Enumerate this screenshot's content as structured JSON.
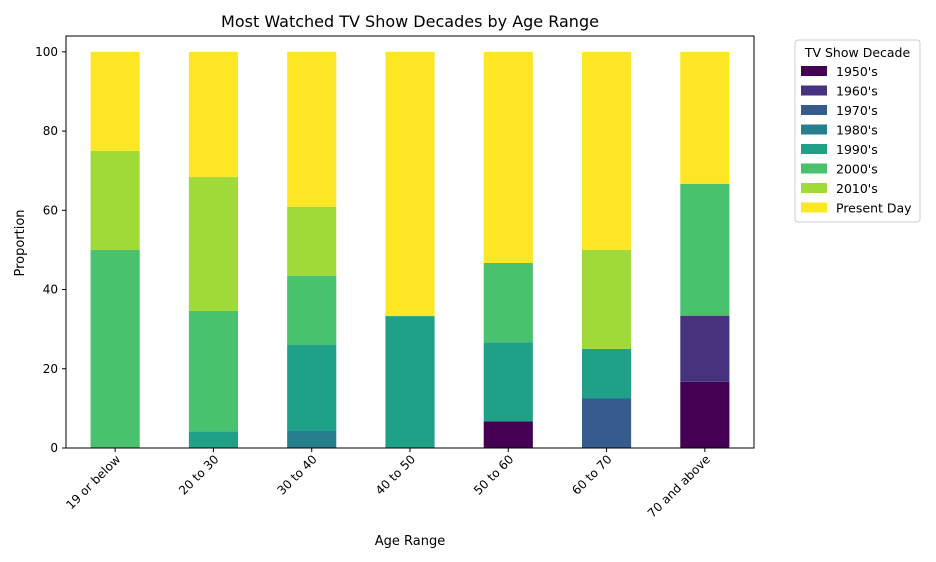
{
  "chart_data": {
    "type": "bar",
    "stacked": true,
    "title": "Most Watched TV Show Decades by Age Range",
    "xlabel": "Age Range",
    "ylabel": "Proportion",
    "ylim": [
      0,
      104
    ],
    "yticks": [
      0,
      20,
      40,
      60,
      80,
      100
    ],
    "categories": [
      "19 or below",
      "20 to 30",
      "30 to 40",
      "40 to 50",
      "50 to 60",
      "60 to 70",
      "70 and above"
    ],
    "legend_title": "TV Show Decade",
    "legend_position": "outside upper right",
    "grid": false,
    "series": [
      {
        "name": "1950's",
        "color": "#440154",
        "values": [
          0,
          0,
          0,
          0,
          6.7,
          0,
          16.7
        ]
      },
      {
        "name": "1960's",
        "color": "#46327e",
        "values": [
          0,
          0,
          0,
          0,
          0,
          0,
          16.7
        ]
      },
      {
        "name": "1970's",
        "color": "#365c8d",
        "values": [
          0,
          0,
          0,
          0,
          0,
          12.5,
          0
        ]
      },
      {
        "name": "1980's",
        "color": "#277f8e",
        "values": [
          0,
          0,
          4.3,
          0,
          0,
          0,
          0
        ]
      },
      {
        "name": "1990's",
        "color": "#1fa187",
        "values": [
          0,
          4.2,
          21.8,
          33.3,
          20.0,
          12.5,
          0
        ]
      },
      {
        "name": "2000's",
        "color": "#4ac16d",
        "values": [
          50.0,
          30.4,
          17.4,
          0,
          20.0,
          0,
          33.3
        ]
      },
      {
        "name": "2010's",
        "color": "#a0da39",
        "values": [
          25.0,
          33.8,
          17.4,
          0,
          0,
          25.0,
          0
        ]
      },
      {
        "name": "Present Day",
        "color": "#fde725",
        "values": [
          25.0,
          31.6,
          39.1,
          66.7,
          53.3,
          50.0,
          33.3
        ]
      }
    ]
  }
}
